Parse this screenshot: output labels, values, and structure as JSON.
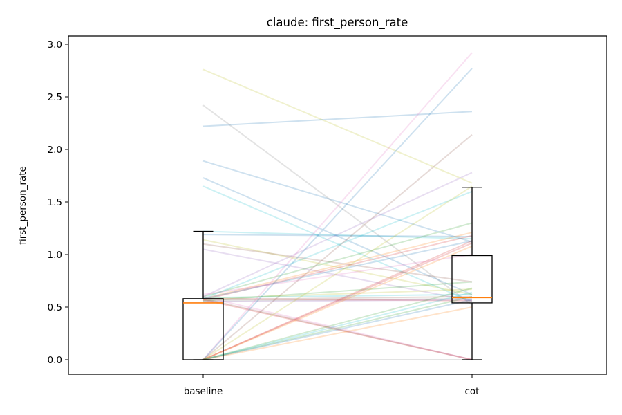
{
  "chart_data": {
    "type": "boxplot",
    "title": "claude: first_person_rate",
    "xlabel": "",
    "ylabel": "first_person_rate",
    "categories": [
      "baseline",
      "cot"
    ],
    "ylim": [
      -0.14,
      3.08
    ],
    "yticks": [
      0.0,
      0.5,
      1.0,
      1.5,
      2.0,
      2.5,
      3.0
    ],
    "ytick_labels": [
      "0.0",
      "0.5",
      "1.0",
      "1.5",
      "2.0",
      "2.5",
      "3.0"
    ],
    "grid": false,
    "legend": "none",
    "boxes": [
      {
        "category": "baseline",
        "whisker_low": 0.0,
        "q1": 0.0,
        "median": 0.54,
        "q3": 0.58,
        "whisker_high": 1.22
      },
      {
        "category": "cot",
        "whisker_low": 0.0,
        "q1": 0.54,
        "median": 0.59,
        "q3": 0.99,
        "whisker_high": 1.64
      }
    ],
    "pairs": [
      {
        "baseline": 2.76,
        "cot": 1.68,
        "color": "#bcbd22"
      },
      {
        "baseline": 2.42,
        "cot": 0.52,
        "color": "#7f7f7f"
      },
      {
        "baseline": 2.22,
        "cot": 2.36,
        "color": "#1f77b4"
      },
      {
        "baseline": 1.89,
        "cot": 1.12,
        "color": "#1f77b4"
      },
      {
        "baseline": 1.73,
        "cot": 0.62,
        "color": "#1f77b4"
      },
      {
        "baseline": 1.65,
        "cot": 0.55,
        "color": "#17becf"
      },
      {
        "baseline": 1.22,
        "cot": 1.15,
        "color": "#17becf"
      },
      {
        "baseline": 1.19,
        "cot": 1.17,
        "color": "#1f77b4"
      },
      {
        "baseline": 1.14,
        "cot": 0.62,
        "color": "#bcbd22"
      },
      {
        "baseline": 1.1,
        "cot": 0.74,
        "color": "#8c564b"
      },
      {
        "baseline": 1.05,
        "cot": 0.56,
        "color": "#9467bd"
      },
      {
        "baseline": 0.6,
        "cot": 1.3,
        "color": "#2ca02c"
      },
      {
        "baseline": 0.58,
        "cot": 1.6,
        "color": "#17becf"
      },
      {
        "baseline": 0.6,
        "cot": 1.78,
        "color": "#9467bd"
      },
      {
        "baseline": 0.58,
        "cot": 1.21,
        "color": "#ff7f0e"
      },
      {
        "baseline": 0.57,
        "cot": 1.18,
        "color": "#d62728"
      },
      {
        "baseline": 0.58,
        "cot": 1.13,
        "color": "#1f77b4"
      },
      {
        "baseline": 0.62,
        "cot": 1.0,
        "color": "#e377c2"
      },
      {
        "baseline": 0.56,
        "cot": 0.74,
        "color": "#2ca02c"
      },
      {
        "baseline": 0.58,
        "cot": 0.67,
        "color": "#bcbd22"
      },
      {
        "baseline": 0.57,
        "cot": 0.6,
        "color": "#8c564b"
      },
      {
        "baseline": 0.56,
        "cot": 0.58,
        "color": "#7f7f7f"
      },
      {
        "baseline": 0.58,
        "cot": 0.56,
        "color": "#d62728"
      },
      {
        "baseline": 0.59,
        "cot": 0.62,
        "color": "#17becf"
      },
      {
        "baseline": 0.55,
        "cot": 0.57,
        "color": "#9467bd"
      },
      {
        "baseline": 0.57,
        "cot": 0.0,
        "color": "#d62728"
      },
      {
        "baseline": 0.58,
        "cot": 0.0,
        "color": "#8c564b"
      },
      {
        "baseline": 0.6,
        "cot": 0.0,
        "color": "#e377c2"
      },
      {
        "baseline": 0.0,
        "cot": 2.92,
        "color": "#e377c2"
      },
      {
        "baseline": 0.0,
        "cot": 2.77,
        "color": "#1f77b4"
      },
      {
        "baseline": 0.0,
        "cot": 2.14,
        "color": "#8c564b"
      },
      {
        "baseline": 0.0,
        "cot": 1.65,
        "color": "#bcbd22"
      },
      {
        "baseline": 0.0,
        "cot": 1.13,
        "color": "#d62728"
      },
      {
        "baseline": 0.0,
        "cot": 1.11,
        "color": "#d62728"
      },
      {
        "baseline": 0.0,
        "cot": 1.08,
        "color": "#ff7f0e"
      },
      {
        "baseline": 0.0,
        "cot": 0.68,
        "color": "#2ca02c"
      },
      {
        "baseline": 0.0,
        "cot": 0.64,
        "color": "#17becf"
      },
      {
        "baseline": 0.0,
        "cot": 0.6,
        "color": "#2ca02c"
      },
      {
        "baseline": 0.0,
        "cot": 0.57,
        "color": "#1f77b4"
      },
      {
        "baseline": 0.0,
        "cot": 0.5,
        "color": "#ff7f0e"
      },
      {
        "baseline": 0.0,
        "cot": 0.0,
        "color": "#7f7f7f"
      }
    ],
    "colors": {
      "box": "#000000",
      "median": "#ff7f0e",
      "line_alpha": 0.22
    }
  }
}
